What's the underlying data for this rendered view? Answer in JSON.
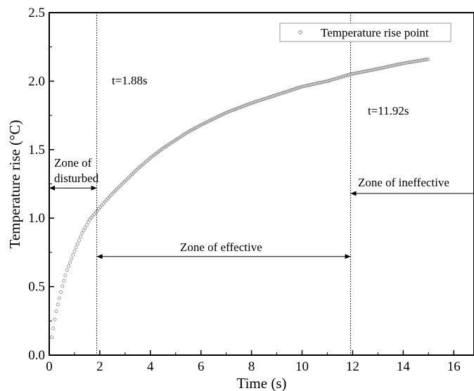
{
  "chart_data": {
    "type": "scatter",
    "title": "",
    "xlabel": "Time (s)",
    "ylabel": "Temperature rise (°C)",
    "xlim": [
      0,
      16.8
    ],
    "ylim": [
      0,
      2.5
    ],
    "xticks": [
      0,
      2,
      4,
      6,
      8,
      10,
      12,
      14,
      16
    ],
    "yticks": [
      0.0,
      0.5,
      1.0,
      1.5,
      2.0,
      2.5
    ],
    "xtick_labels": [
      "0",
      "2",
      "4",
      "6",
      "8",
      "10",
      "12",
      "14",
      "16"
    ],
    "ytick_labels": [
      "0.0",
      "0.5",
      "1.0",
      "1.5",
      "2.0",
      "2.5"
    ],
    "grid": false,
    "legend_position": "top-right",
    "series": [
      {
        "name": "Temperature rise point",
        "marker": "open-circle",
        "color": "#8a8a8a",
        "x": [
          0.1,
          0.2,
          0.3,
          0.5,
          0.7,
          1.0,
          1.3,
          1.6,
          1.88,
          2.2,
          2.5,
          3,
          3.5,
          4,
          4.5,
          5,
          5.5,
          6,
          7,
          8,
          9,
          10,
          11,
          11.92,
          13,
          14,
          15
        ],
        "y": [
          0.13,
          0.24,
          0.34,
          0.49,
          0.62,
          0.76,
          0.89,
          0.99,
          1.05,
          1.12,
          1.18,
          1.27,
          1.36,
          1.44,
          1.51,
          1.57,
          1.63,
          1.68,
          1.77,
          1.84,
          1.9,
          1.96,
          2.0,
          2.05,
          2.09,
          2.13,
          2.16
        ]
      }
    ],
    "vlines": [
      1.88,
      11.92
    ],
    "annotations": {
      "t1": "t=1.88s",
      "t2": "t=11.92s",
      "zone_disturbed_line1": "Zone of",
      "zone_disturbed_line2": "disturbed",
      "zone_effective": "Zone of effective",
      "zone_ineffective": "Zone of ineffective"
    },
    "zone_arrows": [
      {
        "from": 0,
        "to": 1.88,
        "y": 1.22
      },
      {
        "from": 1.88,
        "to": 11.92,
        "y": 0.72
      },
      {
        "from": 11.92,
        "to": 16.8,
        "y": 1.18
      }
    ]
  }
}
